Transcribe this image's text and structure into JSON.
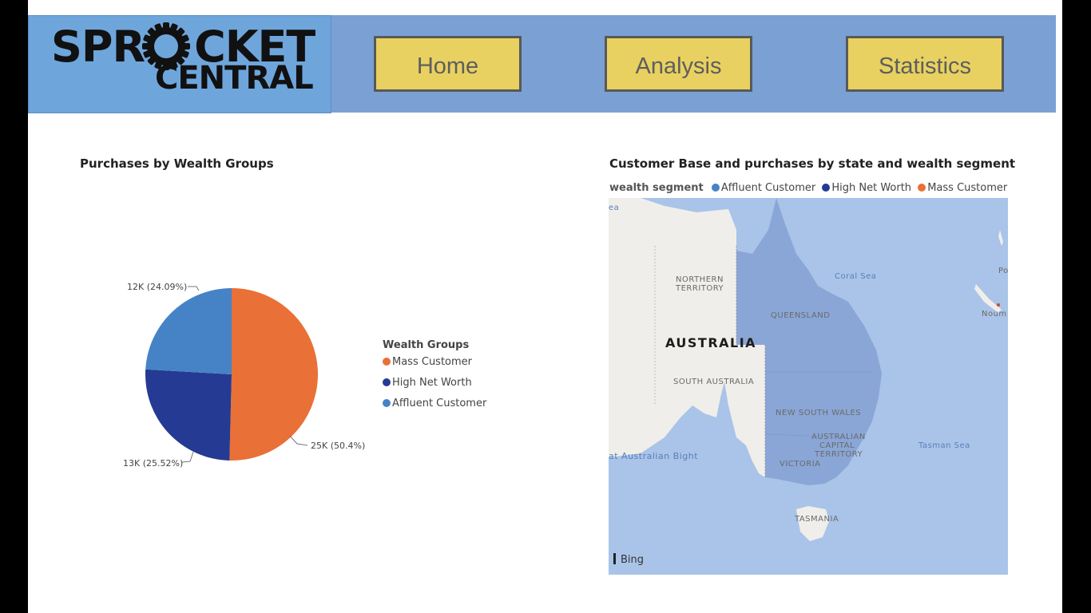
{
  "logo": {
    "line1": "SPR",
    "line1b": "CKET",
    "line2": "CENTRAL"
  },
  "nav": {
    "home": "Home",
    "analysis": "Analysis",
    "statistics": "Statistics"
  },
  "colors": {
    "mass": "#e97036",
    "high": "#253a93",
    "affluent": "#4683c6",
    "header": "#7ba1d4",
    "button": "#e8d160"
  },
  "pie": {
    "title": "Purchases by Wealth Groups",
    "legend_title": "Wealth Groups",
    "legend": [
      "Mass Customer",
      "High Net Worth",
      "Affluent Customer"
    ],
    "labels": {
      "mass": "25K (50.4%)",
      "high": "13K (25.52%)",
      "affluent": "12K (24.09%)"
    }
  },
  "chart_data": {
    "type": "pie",
    "title": "Purchases by Wealth Groups",
    "categories": [
      "Mass Customer",
      "High Net Worth",
      "Affluent Customer"
    ],
    "values": [
      50.4,
      25.52,
      24.09
    ],
    "data_labels": [
      "25K (50.4%)",
      "13K (25.52%)",
      "12K (24.09%)"
    ],
    "legend_title": "Wealth Groups",
    "legend_position": "right"
  },
  "map": {
    "title": "Customer Base and purchases by state and wealth segment",
    "legend_title": "wealth segment",
    "legend": [
      "Affluent Customer",
      "High Net Worth",
      "Mass Customer"
    ],
    "labels": {
      "northern_territory_1": "NORTHERN",
      "northern_territory_2": "TERRITORY",
      "queensland": "QUEENSLAND",
      "australia": "AUSTRALIA",
      "south_australia": "SOUTH AUSTRALIA",
      "nsw": "NEW SOUTH WALES",
      "act_1": "AUSTRALIAN",
      "act_2": "CAPITAL",
      "act_3": "TERRITORY",
      "victoria": "VICTORIA",
      "tasmania": "TASMANIA",
      "coral_sea": "Coral Sea",
      "tasman_sea": "Tasman Sea",
      "bight": "at Australian Bight",
      "sea": "ea",
      "po": "Po",
      "noum": "Noum",
      "bing": "Bing"
    }
  }
}
